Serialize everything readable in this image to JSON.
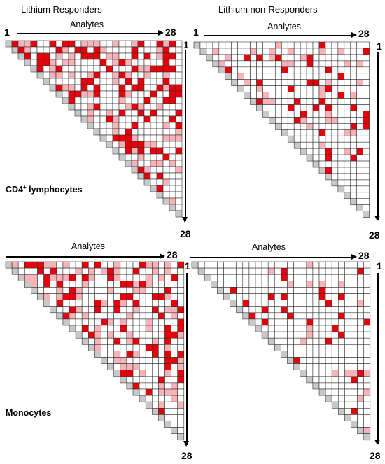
{
  "column_titles": {
    "left": "Lithium Responders",
    "right": "Lithium non-Responders"
  },
  "axis_label": "Analytes",
  "index_start": "1",
  "index_end": "28",
  "cell_types": {
    "top_prefix": "CD4",
    "top_superscript": "+",
    "top_suffix": " lymphocytes",
    "bottom": "Monocytes"
  },
  "colors": {
    "strong": "#e8000b",
    "weak": "#f7b3b8",
    "diagonal": "#c8c8c8",
    "grid": "#333333"
  },
  "chart_data": [
    {
      "type": "heatmap",
      "panel": "Lithium Responders / CD4+ lymphocytes",
      "size": 28,
      "seed": 11,
      "strong_fraction": 0.26,
      "weak_fraction": 0.18
    },
    {
      "type": "heatmap",
      "panel": "Lithium non-Responders / CD4+ lymphocytes",
      "size": 28,
      "seed": 23,
      "strong_fraction": 0.07,
      "weak_fraction": 0.08
    },
    {
      "type": "heatmap",
      "panel": "Lithium Responders / Monocytes",
      "size": 28,
      "seed": 37,
      "strong_fraction": 0.18,
      "weak_fraction": 0.2
    },
    {
      "type": "heatmap",
      "panel": "Lithium non-Responders / Monocytes",
      "size": 28,
      "seed": 51,
      "strong_fraction": 0.05,
      "weak_fraction": 0.05
    }
  ]
}
